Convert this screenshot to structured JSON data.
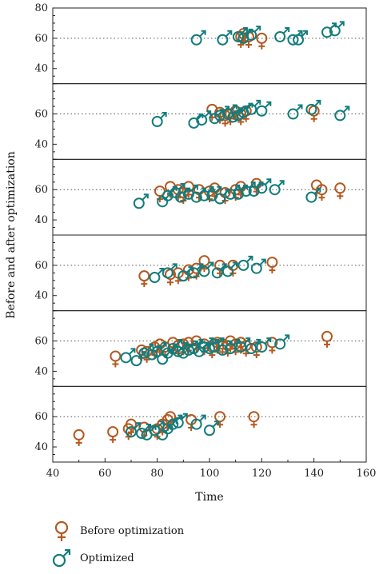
{
  "chart_data": {
    "type": "scatter",
    "xlabel": "Time",
    "ylabel": "Before and after optimization",
    "xlim": [
      40,
      160
    ],
    "xticks": [
      "40",
      "60",
      "80",
      "100",
      "120",
      "140",
      "160"
    ],
    "colors": {
      "before": "#b5581f",
      "optimized": "#127c7c"
    },
    "series_names": [
      "Before optimization",
      "Optimized"
    ],
    "panels": [
      {
        "ylim": [
          30,
          80
        ],
        "yticks": [
          "40",
          "60",
          "80"
        ],
        "gridline": 60,
        "before": [
          [
            112,
            61
          ],
          [
            113,
            63
          ],
          [
            115,
            61
          ],
          [
            120,
            60
          ]
        ],
        "optimized": [
          [
            95,
            59
          ],
          [
            105,
            59
          ],
          [
            111,
            61
          ],
          [
            113,
            60
          ],
          [
            116,
            62
          ],
          [
            127,
            61
          ],
          [
            132,
            59
          ],
          [
            134,
            59
          ],
          [
            145,
            64
          ],
          [
            148,
            65
          ]
        ]
      },
      {
        "ylim": [
          30,
          80
        ],
        "yticks": [
          "40",
          "60"
        ],
        "gridline": 60,
        "before": [
          [
            101,
            63
          ],
          [
            104,
            61
          ],
          [
            106,
            59
          ],
          [
            108,
            60
          ],
          [
            110,
            62
          ],
          [
            112,
            60
          ],
          [
            114,
            62
          ],
          [
            140,
            62
          ]
        ],
        "optimized": [
          [
            80,
            55
          ],
          [
            94,
            54
          ],
          [
            97,
            56
          ],
          [
            102,
            57
          ],
          [
            104,
            59
          ],
          [
            107,
            60
          ],
          [
            109,
            58
          ],
          [
            111,
            59
          ],
          [
            113,
            61
          ],
          [
            116,
            63
          ],
          [
            120,
            62
          ],
          [
            132,
            60
          ],
          [
            139,
            63
          ],
          [
            150,
            59
          ]
        ]
      },
      {
        "ylim": [
          30,
          80
        ],
        "yticks": [
          "40",
          "60"
        ],
        "gridline": 60,
        "before": [
          [
            81,
            59
          ],
          [
            85,
            62
          ],
          [
            88,
            60
          ],
          [
            90,
            58
          ],
          [
            92,
            62
          ],
          [
            96,
            60
          ],
          [
            100,
            59
          ],
          [
            102,
            61
          ],
          [
            106,
            58
          ],
          [
            110,
            60
          ],
          [
            112,
            62
          ],
          [
            118,
            64
          ],
          [
            141,
            63
          ],
          [
            143,
            60
          ],
          [
            150,
            61
          ]
        ],
        "optimized": [
          [
            73,
            51
          ],
          [
            82,
            52
          ],
          [
            84,
            56
          ],
          [
            87,
            58
          ],
          [
            89,
            55
          ],
          [
            92,
            57
          ],
          [
            95,
            55
          ],
          [
            98,
            56
          ],
          [
            101,
            56
          ],
          [
            104,
            54
          ],
          [
            108,
            57
          ],
          [
            111,
            57
          ],
          [
            114,
            59
          ],
          [
            117,
            59
          ],
          [
            120,
            61
          ],
          [
            125,
            60
          ],
          [
            139,
            55
          ]
        ]
      },
      {
        "ylim": [
          30,
          80
        ],
        "yticks": [
          "40",
          "60"
        ],
        "gridline": 60,
        "before": [
          [
            75,
            53
          ],
          [
            85,
            54
          ],
          [
            88,
            55
          ],
          [
            92,
            57
          ],
          [
            95,
            58
          ],
          [
            98,
            63
          ],
          [
            104,
            60
          ],
          [
            109,
            60
          ],
          [
            124,
            62
          ]
        ],
        "optimized": [
          [
            79,
            52
          ],
          [
            84,
            55
          ],
          [
            90,
            53
          ],
          [
            94,
            55
          ],
          [
            98,
            56
          ],
          [
            103,
            55
          ],
          [
            107,
            56
          ],
          [
            113,
            60
          ],
          [
            118,
            58
          ]
        ]
      },
      {
        "ylim": [
          30,
          80
        ],
        "yticks": [
          "40",
          "60"
        ],
        "gridline": 60,
        "before": [
          [
            64,
            50
          ],
          [
            74,
            54
          ],
          [
            76,
            53
          ],
          [
            79,
            56
          ],
          [
            81,
            58
          ],
          [
            83,
            56
          ],
          [
            86,
            59
          ],
          [
            88,
            57
          ],
          [
            90,
            58
          ],
          [
            92,
            59
          ],
          [
            95,
            60
          ],
          [
            98,
            58
          ],
          [
            101,
            56
          ],
          [
            103,
            59
          ],
          [
            105,
            58
          ],
          [
            107,
            57
          ],
          [
            108,
            60
          ],
          [
            110,
            58
          ],
          [
            112,
            59
          ],
          [
            114,
            57
          ],
          [
            118,
            56
          ],
          [
            124,
            59
          ],
          [
            145,
            63
          ]
        ],
        "optimized": [
          [
            68,
            49
          ],
          [
            72,
            47
          ],
          [
            75,
            52
          ],
          [
            78,
            51
          ],
          [
            80,
            53
          ],
          [
            82,
            48
          ],
          [
            84,
            52
          ],
          [
            86,
            55
          ],
          [
            88,
            53
          ],
          [
            90,
            52
          ],
          [
            92,
            54
          ],
          [
            94,
            55
          ],
          [
            96,
            53
          ],
          [
            98,
            56
          ],
          [
            100,
            55
          ],
          [
            102,
            56
          ],
          [
            105,
            54
          ],
          [
            108,
            55
          ],
          [
            112,
            56
          ],
          [
            116,
            55
          ],
          [
            120,
            56
          ],
          [
            127,
            58
          ]
        ]
      },
      {
        "ylim": [
          30,
          80
        ],
        "yticks": [
          "40",
          "60"
        ],
        "gridline": 60,
        "before": [
          [
            50,
            48
          ],
          [
            63,
            50
          ],
          [
            69,
            52
          ],
          [
            70,
            55
          ],
          [
            75,
            53
          ],
          [
            80,
            52
          ],
          [
            82,
            55
          ],
          [
            84,
            58
          ],
          [
            85,
            60
          ],
          [
            93,
            58
          ],
          [
            104,
            60
          ],
          [
            117,
            60
          ]
        ],
        "optimized": [
          [
            70,
            50
          ],
          [
            74,
            49
          ],
          [
            76,
            48
          ],
          [
            79,
            51
          ],
          [
            82,
            48
          ],
          [
            84,
            52
          ],
          [
            86,
            55
          ],
          [
            88,
            56
          ],
          [
            95,
            55
          ],
          [
            100,
            51
          ]
        ]
      }
    ]
  }
}
